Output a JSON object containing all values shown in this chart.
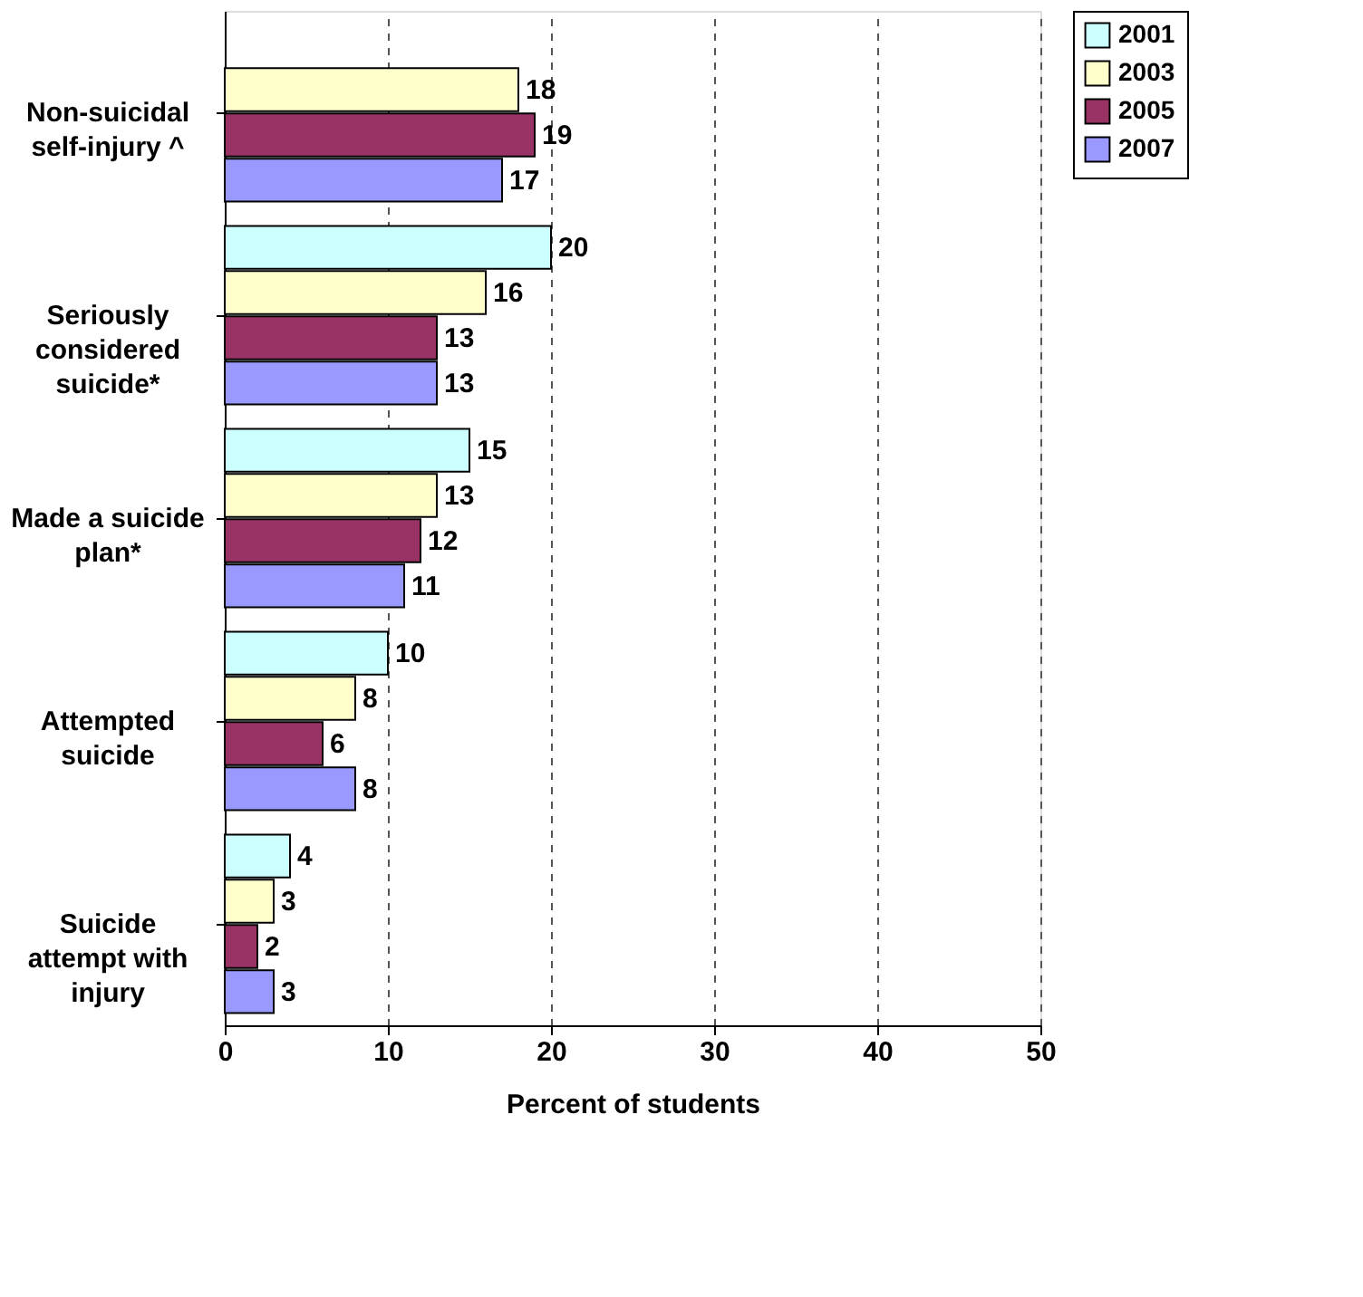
{
  "chart_data": {
    "type": "bar",
    "orientation": "horizontal",
    "categories": [
      "Non-suicidal\nself-injury ^",
      "Seriously\nconsidered\nsuicide*",
      "Made a suicide\nplan*",
      "Attempted\nsuicide",
      "Suicide\nattempt with\ninjury"
    ],
    "series": [
      {
        "name": "2001",
        "color": "#ccffff",
        "values": [
          null,
          20,
          15,
          10,
          4
        ]
      },
      {
        "name": "2003",
        "color": "#ffffcc",
        "values": [
          18,
          16,
          13,
          8,
          3
        ]
      },
      {
        "name": "2005",
        "color": "#993366",
        "values": [
          19,
          13,
          12,
          6,
          2
        ]
      },
      {
        "name": "2007",
        "color": "#9999ff",
        "values": [
          17,
          13,
          11,
          8,
          3
        ]
      }
    ],
    "xlabel": "Percent of students",
    "xlim": [
      0,
      50
    ],
    "xticks": [
      0,
      10,
      20,
      30,
      40,
      50
    ],
    "grid": "x",
    "legend": "right",
    "data_labels": true
  }
}
